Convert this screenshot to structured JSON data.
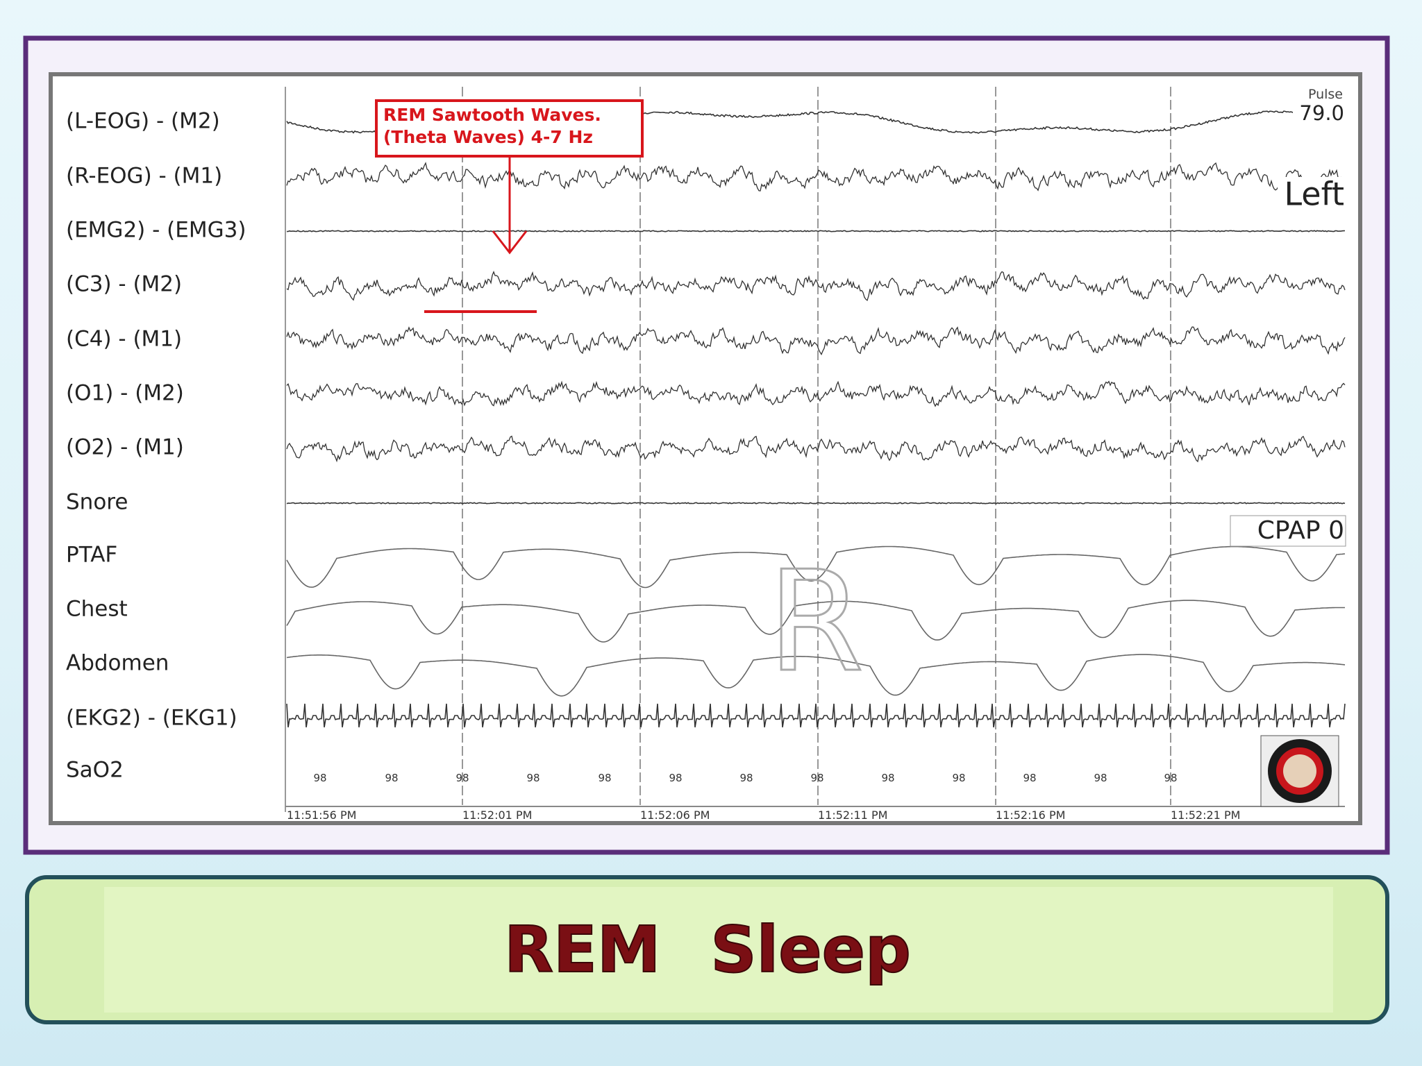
{
  "title": "REM Sleep",
  "annotation": {
    "lines": [
      "REM Sawtooth Waves.",
      "(Theta Waves) 4-7 Hz"
    ]
  },
  "channels": [
    "(L-EOG) - (M2)",
    "(R-EOG) - (M1)",
    "(EMG2) - (EMG3)",
    "(C3) - (M2)",
    "(C4) - (M1)",
    "(O1) - (M2)",
    "(O2) - (M1)",
    "Snore",
    "PTAF",
    "Chest",
    "Abdomen",
    "(EKG2) - (EKG1)",
    "SaO2"
  ],
  "overlays": {
    "pulse_label": "Pulse",
    "pulse_value": "79.0",
    "position": "Left",
    "cpap": "CPAP 0",
    "stage": "R"
  },
  "sao2_values": [
    "98",
    "98",
    "98",
    "98",
    "98",
    "98",
    "98",
    "98",
    "98",
    "98",
    "98",
    "98",
    "98"
  ],
  "time_labels": [
    "11:51:56 PM",
    "11:52:01 PM",
    "11:52:06 PM",
    "11:52:11 PM",
    "11:52:16 PM",
    "11:52:21 PM"
  ]
}
